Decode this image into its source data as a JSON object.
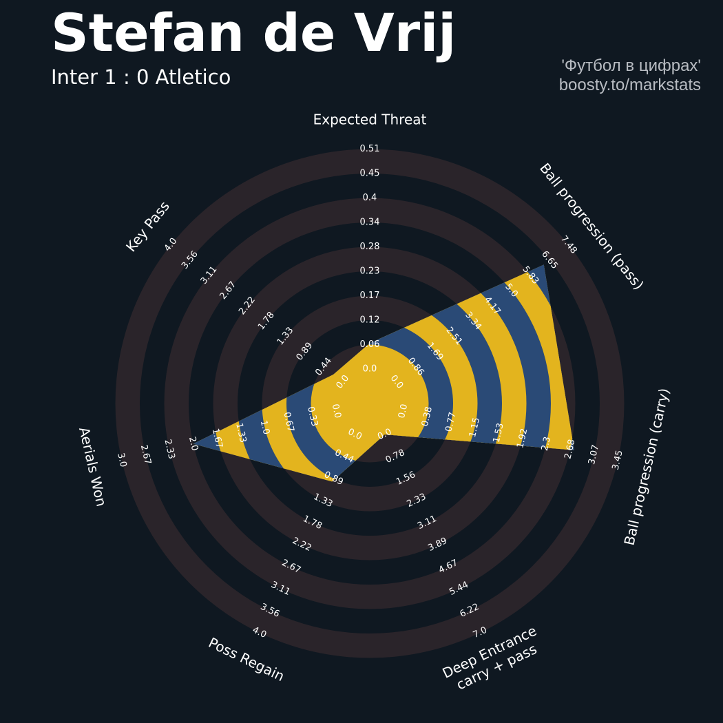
{
  "header": {
    "title": "Stefan de Vrij",
    "subtitle": "Inter 1 : 0 Atletico",
    "credit_line1": "'Футбол в цифрах'",
    "credit_line2": "boosty.to/markstats"
  },
  "colors": {
    "background": "#0f1821",
    "ring_band": "#2a242a",
    "value_polygon": "#2a4a76",
    "value_band": "#e3b41e",
    "label_text": "#ffffff"
  },
  "chart_data": {
    "type": "radar",
    "title": "Stefan de Vrij",
    "subtitle": "Inter 1 : 0 Atletico",
    "series": [
      {
        "values": [
          0.06,
          6.4,
          2.75,
          0.0,
          0.95,
          2.0,
          0.22
        ]
      }
    ],
    "axes": [
      {
        "label": "Expected Threat",
        "min": 0.0,
        "max": 0.51,
        "ticks": [
          "0.0",
          "0.06",
          "0.12",
          "0.17",
          "0.23",
          "0.28",
          "0.34",
          "0.4",
          "0.45",
          "0.51"
        ]
      },
      {
        "label": "Ball progression (pass)",
        "min": 0.0,
        "max": 7.48,
        "ticks": [
          "0.0",
          "0.86",
          "1.69",
          "2.51",
          "3.34",
          "4.17",
          "5.0",
          "5.83",
          "6.65",
          "7.48"
        ]
      },
      {
        "label": "Ball progression (carry)",
        "min": 0.0,
        "max": 3.45,
        "ticks": [
          "0.0",
          "0.38",
          "0.77",
          "1.15",
          "1.53",
          "1.92",
          "2.3",
          "2.68",
          "3.07",
          "3.45"
        ]
      },
      {
        "label": "Deep Entrance\ncarry + pass",
        "min": 0.0,
        "max": 7.0,
        "ticks": [
          "0.0",
          "0.78",
          "1.56",
          "2.33",
          "3.11",
          "3.89",
          "4.67",
          "5.44",
          "6.22",
          "7.0"
        ]
      },
      {
        "label": "Poss Regain",
        "min": 0.0,
        "max": 4.0,
        "ticks": [
          "0.0",
          "0.44",
          "0.89",
          "1.33",
          "1.78",
          "2.22",
          "2.67",
          "3.11",
          "3.56",
          "4.0"
        ]
      },
      {
        "label": "Aerials Won",
        "min": 0.0,
        "max": 3.0,
        "ticks": [
          "0.0",
          "0.33",
          "0.67",
          "1.0",
          "1.33",
          "1.67",
          "2.0",
          "2.33",
          "2.67",
          "3.0"
        ]
      },
      {
        "label": "Key Pass",
        "min": 0.0,
        "max": 4.0,
        "ticks": [
          "0.0",
          "0.44",
          "0.89",
          "1.33",
          "1.78",
          "2.22",
          "2.67",
          "3.11",
          "3.56",
          "4.0"
        ]
      }
    ]
  }
}
